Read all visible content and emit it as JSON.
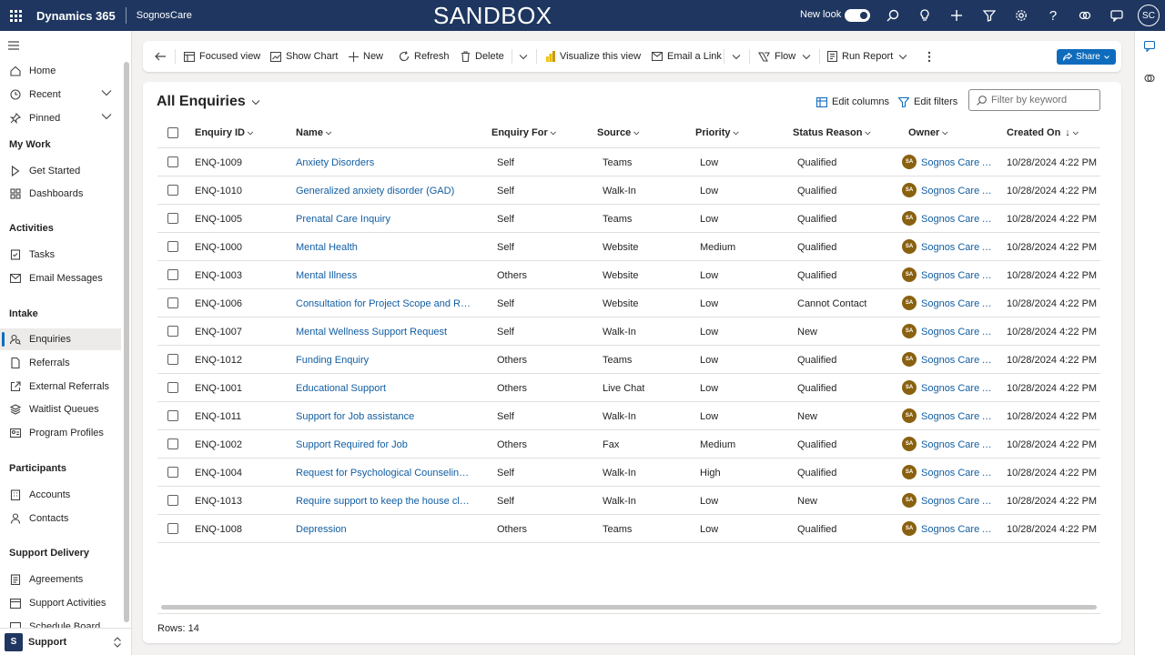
{
  "topbar": {
    "app_title": "Dynamics 365",
    "env_name": "SognosCare",
    "banner": "SANDBOX",
    "new_look_label": "New look",
    "user_initials": "SC"
  },
  "sidebar": {
    "items_top": [
      {
        "label": "Home"
      },
      {
        "label": "Recent"
      },
      {
        "label": "Pinned"
      }
    ],
    "groups": [
      {
        "title": "My Work",
        "items": [
          "Get Started",
          "Dashboards"
        ]
      },
      {
        "title": "Activities",
        "items": [
          "Tasks",
          "Email Messages"
        ]
      },
      {
        "title": "Intake",
        "items": [
          "Enquiries",
          "Referrals",
          "External Referrals",
          "Waitlist Queues",
          "Program Profiles"
        ]
      },
      {
        "title": "Participants",
        "items": [
          "Accounts",
          "Contacts"
        ]
      },
      {
        "title": "Support Delivery",
        "items": [
          "Agreements",
          "Support Activities",
          "Schedule Board"
        ]
      }
    ],
    "area": {
      "badge": "S",
      "label": "Support"
    }
  },
  "commandbar": {
    "focused_view": "Focused view",
    "show_chart": "Show Chart",
    "new": "New",
    "refresh": "Refresh",
    "delete": "Delete",
    "visualize": "Visualize this view",
    "email_link": "Email a Link",
    "flow": "Flow",
    "run_report": "Run Report",
    "share": "Share"
  },
  "view": {
    "title": "All Enquiries",
    "edit_columns": "Edit columns",
    "edit_filters": "Edit filters",
    "search_placeholder": "Filter by keyword",
    "rows_label": "Rows: 14"
  },
  "grid": {
    "columns": [
      "Enquiry ID",
      "Name",
      "Enquiry For",
      "Source",
      "Priority",
      "Status Reason",
      "Owner",
      "Created On"
    ],
    "owner_initials": "SA",
    "rows": [
      {
        "id": "ENQ-1009",
        "name": "Anxiety Disorders",
        "for": "Self",
        "source": "Teams",
        "priority": "Low",
        "status": "Qualified",
        "owner": "Sognos Care Ad...",
        "created": "10/28/2024 4:22 PM"
      },
      {
        "id": "ENQ-1010",
        "name": "Generalized anxiety disorder (GAD)",
        "for": "Self",
        "source": "Walk-In",
        "priority": "Low",
        "status": "Qualified",
        "owner": "Sognos Care Ad...",
        "created": "10/28/2024 4:22 PM"
      },
      {
        "id": "ENQ-1005",
        "name": "Prenatal Care Inquiry",
        "for": "Self",
        "source": "Teams",
        "priority": "Low",
        "status": "Qualified",
        "owner": "Sognos Care Ad...",
        "created": "10/28/2024 4:22 PM"
      },
      {
        "id": "ENQ-1000",
        "name": "Mental Health",
        "for": "Self",
        "source": "Website",
        "priority": "Medium",
        "status": "Qualified",
        "owner": "Sognos Care Ad...",
        "created": "10/28/2024 4:22 PM"
      },
      {
        "id": "ENQ-1003",
        "name": "Mental Illness",
        "for": "Others",
        "source": "Website",
        "priority": "Low",
        "status": "Qualified",
        "owner": "Sognos Care Ad...",
        "created": "10/28/2024 4:22 PM"
      },
      {
        "id": "ENQ-1006",
        "name": "Consultation for Project Scope and Reso...",
        "for": "Self",
        "source": "Website",
        "priority": "Low",
        "status": "Cannot Contact",
        "owner": "Sognos Care Ad...",
        "created": "10/28/2024 4:22 PM"
      },
      {
        "id": "ENQ-1007",
        "name": "Mental Wellness Support Request",
        "for": "Self",
        "source": "Walk-In",
        "priority": "Low",
        "status": "New",
        "owner": "Sognos Care Ad...",
        "created": "10/28/2024 4:22 PM"
      },
      {
        "id": "ENQ-1012",
        "name": "Funding Enquiry",
        "for": "Others",
        "source": "Teams",
        "priority": "Low",
        "status": "Qualified",
        "owner": "Sognos Care Ad...",
        "created": "10/28/2024 4:22 PM"
      },
      {
        "id": "ENQ-1001",
        "name": "Educational Support",
        "for": "Others",
        "source": "Live Chat",
        "priority": "Low",
        "status": "Qualified",
        "owner": "Sognos Care Ad...",
        "created": "10/28/2024 4:22 PM"
      },
      {
        "id": "ENQ-1011",
        "name": "Support for Job assistance",
        "for": "Self",
        "source": "Walk-In",
        "priority": "Low",
        "status": "New",
        "owner": "Sognos Care Ad...",
        "created": "10/28/2024 4:22 PM"
      },
      {
        "id": "ENQ-1002",
        "name": "Support Required for Job",
        "for": "Others",
        "source": "Fax",
        "priority": "Medium",
        "status": "Qualified",
        "owner": "Sognos Care Ad...",
        "created": "10/28/2024 4:22 PM"
      },
      {
        "id": "ENQ-1004",
        "name": "Request for Psychological Counseling Se...",
        "for": "Self",
        "source": "Walk-In",
        "priority": "High",
        "status": "Qualified",
        "owner": "Sognos Care Ad...",
        "created": "10/28/2024 4:22 PM"
      },
      {
        "id": "ENQ-1013",
        "name": "Require support to keep the house clean.",
        "for": "Self",
        "source": "Walk-In",
        "priority": "Low",
        "status": "New",
        "owner": "Sognos Care Ad...",
        "created": "10/28/2024 4:22 PM"
      },
      {
        "id": "ENQ-1008",
        "name": "Depression",
        "for": "Others",
        "source": "Teams",
        "priority": "Low",
        "status": "Qualified",
        "owner": "Sognos Care Ad...",
        "created": "10/28/2024 4:22 PM"
      }
    ]
  }
}
